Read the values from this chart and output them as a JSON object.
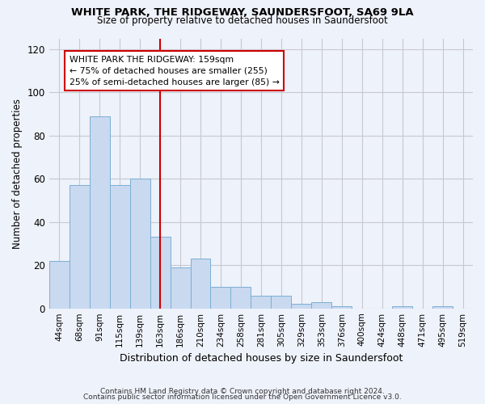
{
  "title1": "WHITE PARK, THE RIDGEWAY, SAUNDERSFOOT, SA69 9LA",
  "title2": "Size of property relative to detached houses in Saundersfoot",
  "xlabel": "Distribution of detached houses by size in Saundersfoot",
  "ylabel": "Number of detached properties",
  "footnote1": "Contains HM Land Registry data © Crown copyright and database right 2024.",
  "footnote2": "Contains public sector information licensed under the Open Government Licence v3.0.",
  "bar_labels": [
    "44sqm",
    "68sqm",
    "91sqm",
    "115sqm",
    "139sqm",
    "163sqm",
    "186sqm",
    "210sqm",
    "234sqm",
    "258sqm",
    "281sqm",
    "305sqm",
    "329sqm",
    "353sqm",
    "376sqm",
    "400sqm",
    "424sqm",
    "448sqm",
    "471sqm",
    "495sqm",
    "519sqm"
  ],
  "bar_values": [
    22,
    57,
    89,
    57,
    60,
    33,
    19,
    23,
    10,
    10,
    6,
    6,
    2,
    3,
    1,
    0,
    0,
    1,
    0,
    1,
    0
  ],
  "bar_color": "#c9d9f0",
  "bar_edgecolor": "#7bafd4",
  "vline_x": 5.0,
  "vline_color": "#cc0000",
  "annotation_line1": "WHITE PARK THE RIDGEWAY: 159sqm",
  "annotation_line2": "← 75% of detached houses are smaller (255)",
  "annotation_line3": "25% of semi-detached houses are larger (85) →",
  "annotation_box_color": "#ffffff",
  "annotation_box_edgecolor": "#cc0000",
  "ylim": [
    0,
    125
  ],
  "yticks": [
    0,
    20,
    40,
    60,
    80,
    100,
    120
  ],
  "grid_color": "#c8c8d0",
  "bg_color": "#eef2fa"
}
